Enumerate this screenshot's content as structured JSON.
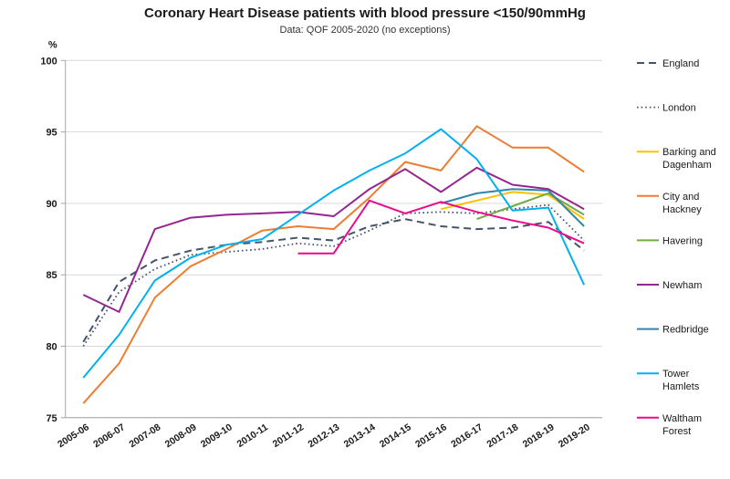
{
  "chart": {
    "title": "Coronary Heart Disease patients with blood pressure <150/90mmHg",
    "subtitle": "Data: QOF 2005-2020 (no exceptions)",
    "y_unit": "%"
  },
  "chart_data": {
    "type": "line",
    "title": "Coronary Heart Disease patients with blood pressure <150/90mmHg",
    "subtitle": "Data: QOF 2005-2020 (no exceptions)",
    "ylabel": "%",
    "xlabel": "",
    "ylim": [
      75,
      100
    ],
    "ytick_step": 5,
    "grid": true,
    "legend_position": "right",
    "categories": [
      "2005-06",
      "2006-07",
      "2007-08",
      "2008-09",
      "2009-10",
      "2010-11",
      "2011-12",
      "2012-13",
      "2013-14",
      "2014-15",
      "2015-16",
      "2016-17",
      "2017-18",
      "2018-19",
      "2019-20"
    ],
    "series": [
      {
        "name": "England",
        "color": "#44546A",
        "style": "dashed",
        "values": [
          80.3,
          84.5,
          86.0,
          86.7,
          87.1,
          87.3,
          87.6,
          87.4,
          88.4,
          88.9,
          88.4,
          88.2,
          88.3,
          88.7,
          86.7
        ]
      },
      {
        "name": "London",
        "color": "#44546A",
        "style": "dotted",
        "values": [
          80.0,
          83.8,
          85.4,
          86.4,
          86.6,
          86.8,
          87.2,
          87.0,
          88.1,
          89.3,
          89.4,
          89.3,
          89.6,
          89.9,
          87.4
        ]
      },
      {
        "name": "Barking and Dagenham",
        "color": "#FFC000",
        "style": "solid",
        "values": [
          null,
          null,
          null,
          null,
          null,
          null,
          null,
          null,
          null,
          null,
          89.6,
          90.2,
          90.8,
          90.6,
          88.9
        ]
      },
      {
        "name": "City and Hackney",
        "color": "#ED7D31",
        "style": "solid",
        "values": [
          76.0,
          78.8,
          83.4,
          85.6,
          86.8,
          88.1,
          88.4,
          88.2,
          90.4,
          92.9,
          92.3,
          95.4,
          93.9,
          93.9,
          92.2
        ]
      },
      {
        "name": "Havering",
        "color": "#70AD47",
        "style": "solid",
        "values": [
          null,
          null,
          null,
          null,
          null,
          null,
          null,
          null,
          null,
          null,
          null,
          88.9,
          89.8,
          90.7,
          89.2
        ]
      },
      {
        "name": "Newham",
        "color": "#93268F",
        "style": "solid",
        "values": [
          83.6,
          82.4,
          88.2,
          89.0,
          89.2,
          89.3,
          89.4,
          89.1,
          91.0,
          92.4,
          90.8,
          92.5,
          91.3,
          91.0,
          89.6
        ]
      },
      {
        "name": "Redbridge",
        "color": "#2E86AB",
        "style": "solid",
        "values": [
          null,
          null,
          null,
          null,
          null,
          null,
          null,
          null,
          null,
          null,
          90.0,
          90.7,
          91.0,
          90.9,
          88.4
        ]
      },
      {
        "name": "Tower Hamlets",
        "color": "#00B0F0",
        "style": "solid",
        "values": [
          77.8,
          80.8,
          84.6,
          86.2,
          87.1,
          87.5,
          89.2,
          90.9,
          92.3,
          93.5,
          95.2,
          93.1,
          89.5,
          89.7,
          84.3
        ]
      },
      {
        "name": "Waltham Forest",
        "color": "#EC098C",
        "style": "solid",
        "values": [
          null,
          null,
          null,
          null,
          null,
          null,
          86.5,
          86.5,
          90.2,
          89.3,
          90.1,
          89.4,
          88.8,
          88.3,
          87.2
        ]
      }
    ],
    "legend_labels": [
      [
        "England"
      ],
      [
        "London"
      ],
      [
        "Barking and",
        "Dagenham"
      ],
      [
        "City and",
        "Hackney"
      ],
      [
        "Havering"
      ],
      [
        "Newham"
      ],
      [
        "Redbridge"
      ],
      [
        "Tower",
        "Hamlets"
      ],
      [
        "Waltham",
        "Forest"
      ]
    ]
  }
}
